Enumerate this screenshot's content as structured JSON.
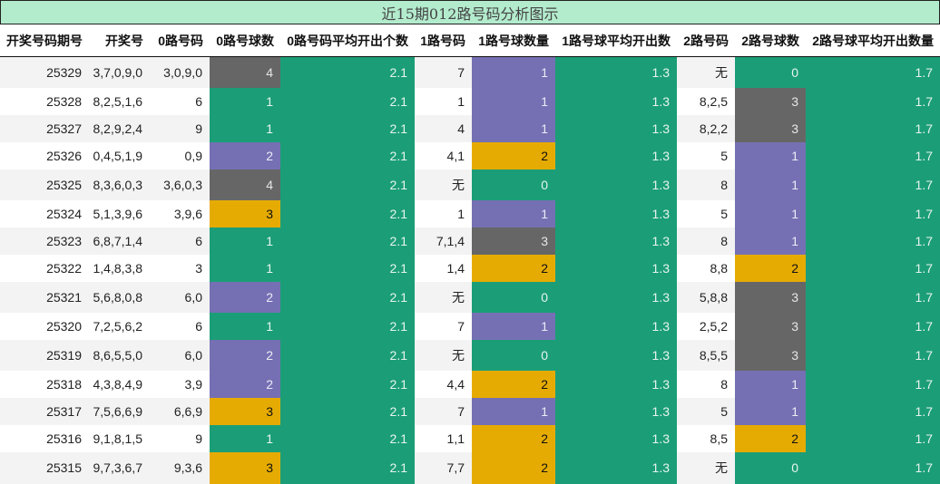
{
  "title": "近15期012路号码分析图示",
  "colors": {
    "title_bg": "#b3ebcd",
    "count_0": "#1b9e77",
    "count_1": "#7570b3",
    "count_2": "#e6ab02",
    "count_3plus": "#666666",
    "avg": "#1b9e77",
    "row_odd": "#f3f3f3",
    "row_even": "#ffffff"
  },
  "headers": [
    "开奖号码期号",
    "开奖号",
    "0路号码",
    "0路号球数",
    "0路号码平均开出个数",
    "1路号码",
    "1路号球数量",
    "1路号球平均开出数",
    "2路号码",
    "2路号球数",
    "2路号球平均开出数量"
  ],
  "chart_data": {
    "type": "table",
    "title": "近15期012路号码分析图示",
    "columns": [
      "开奖号码期号",
      "开奖号",
      "0路号码",
      "0路号球数",
      "0路号码平均开出个数",
      "1路号码",
      "1路号球数量",
      "1路号球平均开出数",
      "2路号码",
      "2路号球数",
      "2路号球平均开出数量"
    ],
    "rows": [
      [
        "25329",
        "3,7,0,9,0",
        "3,0,9,0",
        "4",
        "2.1",
        "7",
        "1",
        "1.3",
        "无",
        "0",
        "1.7"
      ],
      [
        "25328",
        "8,2,5,1,6",
        "6",
        "1",
        "2.1",
        "1",
        "1",
        "1.3",
        "8,2,5",
        "3",
        "1.7"
      ],
      [
        "25327",
        "8,2,9,2,4",
        "9",
        "1",
        "2.1",
        "4",
        "1",
        "1.3",
        "8,2,2",
        "3",
        "1.7"
      ],
      [
        "25326",
        "0,4,5,1,9",
        "0,9",
        "2",
        "2.1",
        "4,1",
        "2",
        "1.3",
        "5",
        "1",
        "1.7"
      ],
      [
        "25325",
        "8,3,6,0,3",
        "3,6,0,3",
        "4",
        "2.1",
        "无",
        "0",
        "1.3",
        "8",
        "1",
        "1.7"
      ],
      [
        "25324",
        "5,1,3,9,6",
        "3,9,6",
        "3",
        "2.1",
        "1",
        "1",
        "1.3",
        "5",
        "1",
        "1.7"
      ],
      [
        "25323",
        "6,8,7,1,4",
        "6",
        "1",
        "2.1",
        "7,1,4",
        "3",
        "1.3",
        "8",
        "1",
        "1.7"
      ],
      [
        "25322",
        "1,4,8,3,8",
        "3",
        "1",
        "2.1",
        "1,4",
        "2",
        "1.3",
        "8,8",
        "2",
        "1.7"
      ],
      [
        "25321",
        "5,6,8,0,8",
        "6,0",
        "2",
        "2.1",
        "无",
        "0",
        "1.3",
        "5,8,8",
        "3",
        "1.7"
      ],
      [
        "25320",
        "7,2,5,6,2",
        "6",
        "1",
        "2.1",
        "7",
        "1",
        "1.3",
        "2,5,2",
        "3",
        "1.7"
      ],
      [
        "25319",
        "8,6,5,5,0",
        "6,0",
        "2",
        "2.1",
        "无",
        "0",
        "1.3",
        "8,5,5",
        "3",
        "1.7"
      ],
      [
        "25318",
        "4,3,8,4,9",
        "3,9",
        "2",
        "2.1",
        "4,4",
        "2",
        "1.3",
        "8",
        "1",
        "1.7"
      ],
      [
        "25317",
        "7,5,6,6,9",
        "6,6,9",
        "3",
        "2.1",
        "7",
        "1",
        "1.3",
        "5",
        "1",
        "1.7"
      ],
      [
        "25316",
        "9,1,8,1,5",
        "9",
        "1",
        "2.1",
        "1,1",
        "2",
        "1.3",
        "8,5",
        "2",
        "1.7"
      ],
      [
        "25315",
        "9,7,3,6,7",
        "9,3,6",
        "3",
        "2.1",
        "7,7",
        "2",
        "1.3",
        "无",
        "0",
        "1.7"
      ]
    ],
    "cell_colors": {
      "0路号球数": [
        "gray",
        "green",
        "green",
        "purple",
        "gray",
        "orange",
        "green",
        "green",
        "purple",
        "green",
        "purple",
        "purple",
        "orange",
        "green",
        "orange"
      ],
      "1路号球数量": [
        "purple",
        "purple",
        "purple",
        "orange",
        "green",
        "purple",
        "gray",
        "orange",
        "green",
        "purple",
        "green",
        "orange",
        "purple",
        "orange",
        "orange"
      ],
      "2路号球数": [
        "green",
        "gray",
        "gray",
        "purple",
        "purple",
        "purple",
        "purple",
        "orange",
        "gray",
        "gray",
        "gray",
        "purple",
        "purple",
        "orange",
        "green"
      ]
    },
    "averages": {
      "0路": 2.1,
      "1路": 1.3,
      "2路": 1.7
    }
  }
}
